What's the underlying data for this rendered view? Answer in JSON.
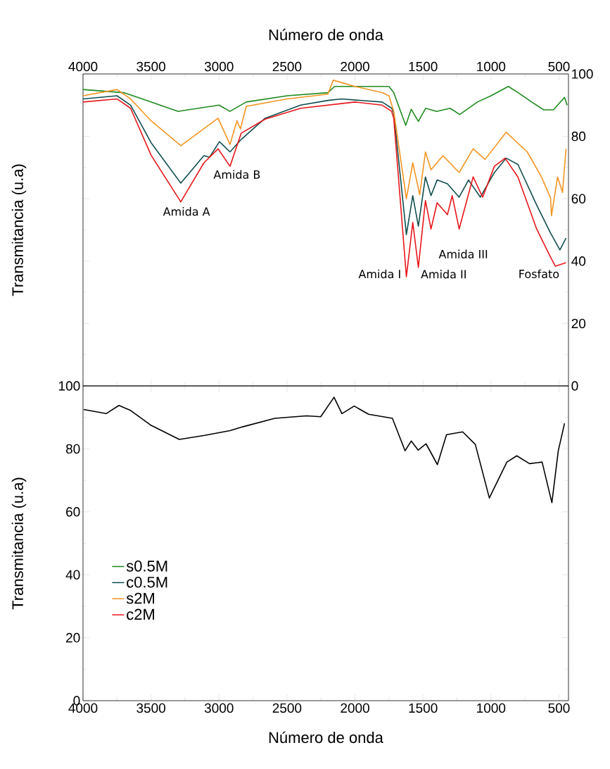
{
  "chart_data": [
    {
      "type": "line",
      "ylabel": "Transmitancia (u.a)",
      "xlabel": "Número de onda",
      "xlim": [
        4000,
        430
      ],
      "xticks": [
        4000,
        3500,
        3000,
        2500,
        2000,
        1500,
        1000,
        500
      ],
      "ylim": [
        0,
        100
      ],
      "yticks": [
        0,
        20,
        40,
        60,
        80,
        100
      ],
      "marker": "none",
      "line_style": "solid",
      "legend": "bottom left",
      "annotations": [
        {
          "text": "Amida A",
          "x": 3280,
          "y": 59
        },
        {
          "text": "Amida B",
          "x": 2919,
          "y": 70.4
        },
        {
          "text": "Amida I",
          "x": 1622,
          "y": 35
        },
        {
          "text": "Amida II",
          "x": 1534,
          "y": 38
        },
        {
          "text": "Amida III",
          "x": 1234,
          "y": 50.3
        },
        {
          "text": "Fosfato",
          "x": 500,
          "y": 39
        }
      ],
      "series": [
        {
          "name": "s0.5M",
          "color": "#1e8a1e",
          "x": [
            4000,
            3700,
            3500,
            3300,
            3000,
            2920,
            2800,
            2500,
            2200,
            2150,
            2000,
            1750,
            1715,
            1627,
            1586,
            1534,
            1480,
            1400,
            1300,
            1230,
            1100,
            1000,
            872,
            800,
            700,
            613,
            541,
            459,
            440
          ],
          "values": [
            95,
            94,
            91,
            88,
            90,
            88,
            91,
            93,
            94,
            96,
            96,
            96,
            94,
            83.5,
            88.7,
            84.8,
            89,
            88,
            89,
            87,
            91,
            93,
            96,
            94,
            91,
            88.5,
            88.5,
            92.5,
            90
          ]
        },
        {
          "name": "c0.5M",
          "color": "#124e4e",
          "x": [
            4000,
            3750,
            3650,
            3500,
            3281,
            3111,
            3069,
            2997,
            2919,
            2837,
            2661,
            2400,
            2200,
            2100,
            1800,
            1730,
            1715,
            1622,
            1575,
            1534,
            1482,
            1441,
            1396,
            1320,
            1234,
            1165,
            1078,
            975,
            888,
            802,
            664,
            562,
            493,
            448
          ],
          "values": [
            92,
            93,
            90,
            78,
            65,
            73.8,
            73.3,
            78.3,
            75,
            79,
            85.8,
            90,
            91.5,
            92,
            91,
            89,
            87.5,
            48.5,
            61,
            51.2,
            67,
            61,
            66,
            64.8,
            60.5,
            66,
            60.5,
            68.4,
            73,
            71,
            58,
            49,
            43.6,
            47.4
          ]
        },
        {
          "name": "s2M",
          "color": "#f39420",
          "x": [
            4000,
            3750,
            3650,
            3500,
            3280,
            3095,
            3007,
            2919,
            2868,
            2842,
            2800,
            2500,
            2200,
            2160,
            2000,
            1800,
            1750,
            1715,
            1622,
            1575,
            1524,
            1482,
            1441,
            1353,
            1234,
            1131,
            1043,
            888,
            733,
            629,
            562,
            555,
            510,
            474,
            448
          ],
          "values": [
            93,
            95,
            92,
            85,
            77,
            83,
            85.8,
            77.4,
            85,
            82.4,
            89.6,
            92,
            93.5,
            98,
            96,
            94,
            93,
            88,
            60,
            71.5,
            61.3,
            75,
            69.3,
            73.8,
            68.4,
            76,
            72.6,
            81.3,
            75,
            67,
            60.3,
            54.6,
            67,
            62,
            76
          ]
        },
        {
          "name": "c2M",
          "color": "#e8161a",
          "x": [
            4000,
            3750,
            3650,
            3500,
            3281,
            3111,
            3007,
            2919,
            2837,
            2661,
            2400,
            2000,
            1800,
            1730,
            1715,
            1622,
            1575,
            1534,
            1482,
            1441,
            1396,
            1320,
            1285,
            1234,
            1131,
            1061,
            975,
            896,
            802,
            664,
            562,
            527,
            448
          ],
          "values": [
            91,
            92,
            89,
            74,
            59,
            71.5,
            76,
            70.4,
            81,
            85.5,
            89,
            91,
            90,
            88,
            85.8,
            35,
            52.4,
            38,
            59.4,
            50.3,
            58.7,
            54.9,
            61,
            50.3,
            67,
            60.5,
            70.4,
            73,
            67,
            50.3,
            41.3,
            38.4,
            39.5
          ]
        }
      ]
    },
    {
      "type": "line",
      "xlabel": "Número de onda",
      "ylabel": "Transmitancia (u.a)",
      "xlim": [
        4000,
        430
      ],
      "xticks": [
        4000,
        3500,
        3000,
        2500,
        2000,
        1500,
        1000,
        500
      ],
      "ylim": [
        0,
        100
      ],
      "yticks": [
        0,
        20,
        40,
        60,
        80,
        100
      ],
      "marker": "none",
      "line_style": "solid",
      "series": [
        {
          "color": "#000000",
          "x": [
            3995,
            3830,
            3736,
            3654,
            3504,
            3292,
            3106,
            2919,
            2826,
            2589,
            2356,
            2252,
            2154,
            2096,
            2006,
            1900,
            1725,
            1632,
            1586,
            1535,
            1477,
            1394,
            1327,
            1208,
            1115,
            1012,
            883,
            810,
            717,
            624,
            552,
            505,
            459
          ],
          "values": [
            92.5,
            91.2,
            93.8,
            92.3,
            87.6,
            83,
            84.3,
            85.8,
            87,
            89.7,
            90.5,
            90.2,
            96.4,
            91.2,
            93.6,
            91,
            89.7,
            79.4,
            82.5,
            79.6,
            81.6,
            75,
            84.5,
            85.4,
            81.4,
            64.4,
            75.8,
            77.8,
            75.3,
            75.8,
            62.9,
            79.4,
            88.1
          ]
        }
      ]
    }
  ]
}
